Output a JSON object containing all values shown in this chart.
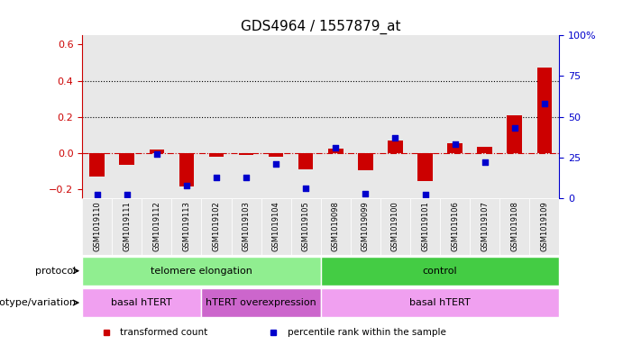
{
  "title": "GDS4964 / 1557879_at",
  "samples": [
    "GSM1019110",
    "GSM1019111",
    "GSM1019112",
    "GSM1019113",
    "GSM1019102",
    "GSM1019103",
    "GSM1019104",
    "GSM1019105",
    "GSM1019098",
    "GSM1019099",
    "GSM1019100",
    "GSM1019101",
    "GSM1019106",
    "GSM1019107",
    "GSM1019108",
    "GSM1019109"
  ],
  "transformed_count": [
    -0.13,
    -0.065,
    0.02,
    -0.185,
    -0.02,
    -0.01,
    -0.02,
    -0.09,
    0.025,
    -0.095,
    0.07,
    -0.155,
    0.055,
    0.035,
    0.21,
    0.47
  ],
  "percentile_rank": [
    2,
    2,
    27,
    8,
    13,
    13,
    21,
    6,
    31,
    3,
    37,
    2,
    33,
    22,
    43,
    58
  ],
  "bar_color": "#cc0000",
  "dot_color": "#0000cc",
  "ylim_left": [
    -0.25,
    0.65
  ],
  "ylim_right": [
    0,
    100
  ],
  "yticks_left": [
    -0.2,
    0.0,
    0.2,
    0.4,
    0.6
  ],
  "yticks_right": [
    0,
    25,
    50,
    75,
    100
  ],
  "dotted_lines": [
    0.2,
    0.4
  ],
  "protocol_groups": [
    {
      "label": "telomere elongation",
      "start": 0,
      "end": 8,
      "color": "#90ee90"
    },
    {
      "label": "control",
      "start": 8,
      "end": 16,
      "color": "#44cc44"
    }
  ],
  "genotype_groups": [
    {
      "label": "basal hTERT",
      "start": 0,
      "end": 4,
      "color": "#f0a0f0"
    },
    {
      "label": "hTERT overexpression",
      "start": 4,
      "end": 8,
      "color": "#cc66cc"
    },
    {
      "label": "basal hTERT",
      "start": 8,
      "end": 16,
      "color": "#f0a0f0"
    }
  ],
  "legend_items": [
    {
      "label": "transformed count",
      "color": "#cc0000"
    },
    {
      "label": "percentile rank within the sample",
      "color": "#0000cc"
    }
  ],
  "protocol_label": "protocol",
  "genotype_label": "genotype/variation",
  "background_color": "#ffffff",
  "right_axis_color": "#0000cc",
  "left_axis_color": "#cc0000",
  "dashed_line_color": "#cc0000",
  "col_bg_even": "#e8e8e8",
  "col_bg_odd": "#ffffff"
}
